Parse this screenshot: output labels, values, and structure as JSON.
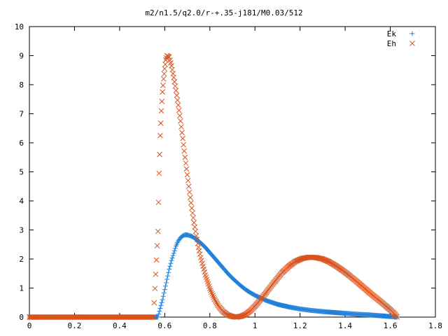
{
  "chart_data": {
    "type": "scatter",
    "title": "m2/n1.5/q2.0/r-+.35-j181/M0.03/512",
    "xlabel": "",
    "ylabel": "",
    "xlim": [
      0,
      1.8
    ],
    "ylim": [
      0,
      10
    ],
    "x_ticks": [
      "0",
      "0.2",
      "0.4",
      "0.6",
      "0.8",
      "1",
      "1.2",
      "1.4",
      "1.6",
      "1.8"
    ],
    "y_ticks": [
      "0",
      "1",
      "2",
      "3",
      "4",
      "5",
      "6",
      "7",
      "8",
      "9",
      "10"
    ],
    "grid": false,
    "legend_position": "top-right",
    "series": [
      {
        "name": "Ek",
        "marker": "plus",
        "color": "#1f7fd8",
        "points": [
          [
            0.0,
            0.0
          ],
          [
            0.05,
            0.0
          ],
          [
            0.1,
            0.0
          ],
          [
            0.15,
            0.0
          ],
          [
            0.2,
            0.0
          ],
          [
            0.25,
            0.0
          ],
          [
            0.3,
            0.0
          ],
          [
            0.35,
            0.0
          ],
          [
            0.4,
            0.0
          ],
          [
            0.45,
            0.0
          ],
          [
            0.5,
            0.0
          ],
          [
            0.55,
            0.0
          ],
          [
            0.57,
            0.0
          ],
          [
            0.58,
            0.3
          ],
          [
            0.59,
            0.6
          ],
          [
            0.6,
            0.95
          ],
          [
            0.61,
            1.3
          ],
          [
            0.62,
            1.65
          ],
          [
            0.63,
            1.95
          ],
          [
            0.64,
            2.2
          ],
          [
            0.65,
            2.45
          ],
          [
            0.66,
            2.62
          ],
          [
            0.67,
            2.73
          ],
          [
            0.68,
            2.8
          ],
          [
            0.69,
            2.83
          ],
          [
            0.7,
            2.83
          ],
          [
            0.72,
            2.78
          ],
          [
            0.74,
            2.68
          ],
          [
            0.76,
            2.55
          ],
          [
            0.78,
            2.4
          ],
          [
            0.8,
            2.22
          ],
          [
            0.82,
            2.04
          ],
          [
            0.84,
            1.86
          ],
          [
            0.86,
            1.68
          ],
          [
            0.88,
            1.5
          ],
          [
            0.9,
            1.34
          ],
          [
            0.92,
            1.2
          ],
          [
            0.94,
            1.06
          ],
          [
            0.96,
            0.94
          ],
          [
            0.98,
            0.84
          ],
          [
            1.0,
            0.75
          ],
          [
            1.05,
            0.57
          ],
          [
            1.1,
            0.44
          ],
          [
            1.15,
            0.35
          ],
          [
            1.2,
            0.28
          ],
          [
            1.25,
            0.23
          ],
          [
            1.3,
            0.19
          ],
          [
            1.35,
            0.16
          ],
          [
            1.4,
            0.13
          ],
          [
            1.45,
            0.1
          ],
          [
            1.5,
            0.08
          ],
          [
            1.55,
            0.05
          ],
          [
            1.6,
            0.02
          ],
          [
            1.63,
            0.0
          ]
        ]
      },
      {
        "name": "Eh",
        "marker": "cross",
        "color": "#d8541f",
        "points": [
          [
            0.0,
            0.0
          ],
          [
            0.05,
            0.0
          ],
          [
            0.1,
            0.0
          ],
          [
            0.15,
            0.0
          ],
          [
            0.2,
            0.0
          ],
          [
            0.25,
            0.0
          ],
          [
            0.3,
            0.0
          ],
          [
            0.35,
            0.0
          ],
          [
            0.4,
            0.0
          ],
          [
            0.45,
            0.0
          ],
          [
            0.5,
            0.0
          ],
          [
            0.55,
            0.0
          ],
          [
            0.57,
            2.95
          ],
          [
            0.575,
            4.95
          ],
          [
            0.58,
            6.25
          ],
          [
            0.585,
            7.1
          ],
          [
            0.59,
            7.75
          ],
          [
            0.595,
            8.2
          ],
          [
            0.6,
            8.55
          ],
          [
            0.605,
            8.85
          ],
          [
            0.61,
            9.0
          ],
          [
            0.62,
            8.95
          ],
          [
            0.63,
            8.65
          ],
          [
            0.64,
            8.25
          ],
          [
            0.65,
            7.8
          ],
          [
            0.66,
            7.3
          ],
          [
            0.67,
            6.75
          ],
          [
            0.68,
            6.15
          ],
          [
            0.69,
            5.5
          ],
          [
            0.7,
            4.9
          ],
          [
            0.71,
            4.3
          ],
          [
            0.72,
            3.75
          ],
          [
            0.73,
            3.25
          ],
          [
            0.74,
            2.8
          ],
          [
            0.75,
            2.4
          ],
          [
            0.76,
            2.05
          ],
          [
            0.78,
            1.45
          ],
          [
            0.8,
            0.98
          ],
          [
            0.82,
            0.62
          ],
          [
            0.84,
            0.36
          ],
          [
            0.86,
            0.18
          ],
          [
            0.88,
            0.07
          ],
          [
            0.9,
            0.02
          ],
          [
            0.92,
            0.0
          ],
          [
            0.94,
            0.03
          ],
          [
            0.96,
            0.1
          ],
          [
            0.98,
            0.22
          ],
          [
            1.0,
            0.38
          ],
          [
            1.03,
            0.65
          ],
          [
            1.06,
            0.95
          ],
          [
            1.09,
            1.25
          ],
          [
            1.12,
            1.53
          ],
          [
            1.15,
            1.75
          ],
          [
            1.18,
            1.92
          ],
          [
            1.21,
            2.02
          ],
          [
            1.24,
            2.06
          ],
          [
            1.27,
            2.05
          ],
          [
            1.3,
            2.0
          ],
          [
            1.33,
            1.9
          ],
          [
            1.36,
            1.76
          ],
          [
            1.39,
            1.6
          ],
          [
            1.42,
            1.42
          ],
          [
            1.45,
            1.23
          ],
          [
            1.48,
            1.03
          ],
          [
            1.51,
            0.83
          ],
          [
            1.54,
            0.64
          ],
          [
            1.57,
            0.45
          ],
          [
            1.6,
            0.25
          ],
          [
            1.62,
            0.1
          ],
          [
            1.63,
            0.0
          ]
        ]
      }
    ]
  }
}
